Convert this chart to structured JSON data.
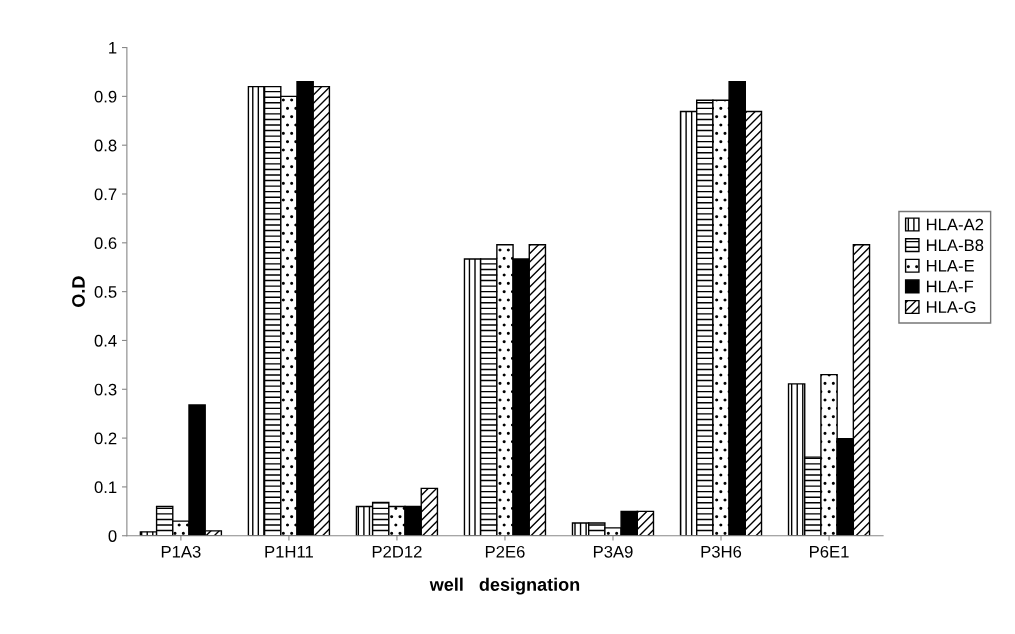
{
  "chart_data": {
    "type": "bar",
    "xlabel": "well   designation",
    "ylabel": "O.D",
    "categories": [
      "P1A3",
      "P1H11",
      "P2D12",
      "P2E6",
      "P3A9",
      "P3H6",
      "P6E1"
    ],
    "series": [
      {
        "name": "HLA-A2",
        "color": "#000000",
        "values": [
          0.008,
          0.92,
          0.06,
          0.567,
          0.026,
          0.869,
          0.311
        ]
      },
      {
        "name": "HLA-B8",
        "color": "#000000",
        "values": [
          0.06,
          0.92,
          0.068,
          0.567,
          0.026,
          0.892,
          0.161
        ]
      },
      {
        "name": "HLA-E",
        "color": "#000000",
        "values": [
          0.03,
          0.9,
          0.06,
          0.596,
          0.016,
          0.892,
          0.33
        ]
      },
      {
        "name": "HLA-F",
        "color": "#000000",
        "values": [
          0.268,
          0.93,
          0.06,
          0.567,
          0.05,
          0.93,
          0.199
        ]
      },
      {
        "name": "HLA-G",
        "color": "#000000",
        "values": [
          0.01,
          0.92,
          0.097,
          0.596,
          0.05,
          0.869,
          0.596
        ]
      }
    ],
    "ylim": [
      0,
      1
    ],
    "yticks": [
      0,
      0.1,
      0.2,
      0.3,
      0.4,
      0.5,
      0.6,
      0.7,
      0.8,
      0.9,
      1
    ],
    "grid": false,
    "legend": "right"
  }
}
